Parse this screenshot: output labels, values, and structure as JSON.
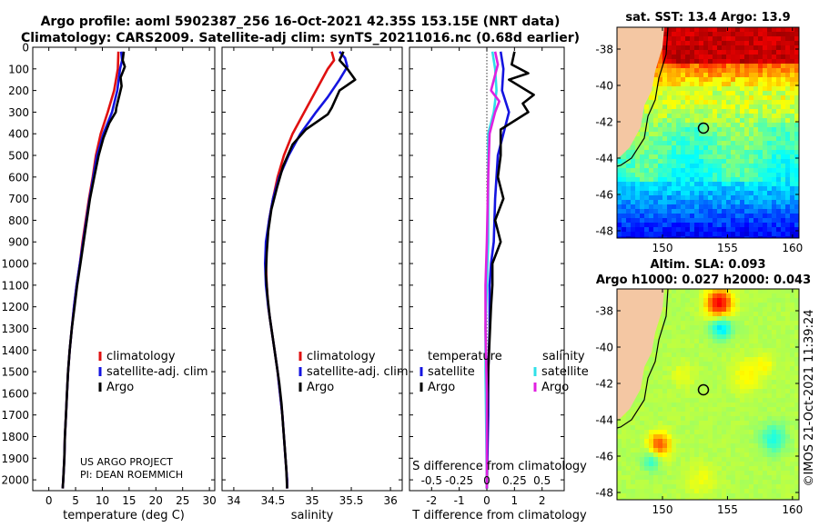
{
  "header": {
    "title_line1": "Argo profile: aoml 5902387_256 16-Oct-2021 42.35S 153.15E (NRT data)",
    "title_line2": "Climatology: CARS2009. Satellite-adj clim: synTS_20211016.nc (0.68d earlier)"
  },
  "credit": {
    "project": "US ARGO PROJECT",
    "pi": "PI: DEAN ROEMMICH",
    "stamp": "©IMOS 21-Oct-2021 11:39:24"
  },
  "colors": {
    "climatology": "#e01010",
    "satellite_adj": "#1414e0",
    "argo": "#000000",
    "sat_temperature": "#1414e0",
    "sat_salinity": "#30e0e8",
    "argo_salinity": "#e020e0"
  },
  "chart_data": [
    {
      "id": "temperature",
      "type": "line",
      "xlabel": "temperature (deg C)",
      "ylabel": "",
      "xlim": [
        -3,
        31
      ],
      "ylim": [
        2050,
        0
      ],
      "xticks": [
        0,
        5,
        10,
        15,
        20,
        25,
        30
      ],
      "yticks": [
        0,
        100,
        200,
        300,
        400,
        500,
        600,
        700,
        800,
        900,
        1000,
        1100,
        1200,
        1300,
        1400,
        1500,
        1600,
        1700,
        1800,
        1900,
        2000
      ],
      "legend": [
        "climatology",
        "satellite-adj. clim",
        "Argo"
      ],
      "series": [
        {
          "name": "climatology",
          "color": "#e01010",
          "points": [
            [
              13.0,
              20
            ],
            [
              12.9,
              100
            ],
            [
              12.2,
              200
            ],
            [
              11.0,
              300
            ],
            [
              9.7,
              400
            ],
            [
              8.8,
              500
            ],
            [
              8.2,
              600
            ],
            [
              7.5,
              700
            ],
            [
              6.9,
              800
            ],
            [
              6.3,
              900
            ],
            [
              5.8,
              1000
            ],
            [
              5.2,
              1100
            ],
            [
              4.7,
              1200
            ],
            [
              4.3,
              1300
            ],
            [
              3.9,
              1400
            ],
            [
              3.6,
              1500
            ],
            [
              3.4,
              1600
            ],
            [
              3.2,
              1700
            ],
            [
              3.0,
              1800
            ],
            [
              2.9,
              1900
            ],
            [
              2.7,
              2000
            ],
            [
              2.6,
              2040
            ]
          ]
        },
        {
          "name": "satellite-adj. clim",
          "color": "#1414e0",
          "points": [
            [
              13.5,
              20
            ],
            [
              13.7,
              60
            ],
            [
              13.3,
              100
            ],
            [
              12.8,
              200
            ],
            [
              11.8,
              300
            ],
            [
              10.2,
              400
            ],
            [
              9.0,
              500
            ],
            [
              8.3,
              600
            ],
            [
              7.6,
              700
            ],
            [
              7.0,
              800
            ],
            [
              6.4,
              900
            ],
            [
              5.8,
              1000
            ],
            [
              5.2,
              1100
            ],
            [
              4.7,
              1200
            ],
            [
              4.3,
              1300
            ],
            [
              3.9,
              1400
            ],
            [
              3.6,
              1500
            ],
            [
              3.4,
              1600
            ],
            [
              3.2,
              1700
            ],
            [
              3.0,
              1800
            ],
            [
              2.9,
              1900
            ],
            [
              2.7,
              2000
            ],
            [
              2.6,
              2040
            ]
          ]
        },
        {
          "name": "Argo",
          "color": "#000000",
          "points": [
            [
              14.0,
              20
            ],
            [
              13.8,
              60
            ],
            [
              14.2,
              90
            ],
            [
              13.4,
              140
            ],
            [
              13.6,
              180
            ],
            [
              13.2,
              220
            ],
            [
              12.6,
              280
            ],
            [
              12.5,
              300
            ],
            [
              11.3,
              350
            ],
            [
              10.2,
              420
            ],
            [
              9.3,
              500
            ],
            [
              8.5,
              600
            ],
            [
              7.7,
              700
            ],
            [
              7.1,
              800
            ],
            [
              6.5,
              900
            ],
            [
              5.9,
              1000
            ],
            [
              5.3,
              1100
            ],
            [
              4.8,
              1200
            ],
            [
              4.3,
              1300
            ],
            [
              3.9,
              1400
            ],
            [
              3.6,
              1500
            ],
            [
              3.4,
              1600
            ],
            [
              3.2,
              1700
            ],
            [
              3.0,
              1800
            ],
            [
              2.9,
              1900
            ],
            [
              2.7,
              2000
            ],
            [
              2.6,
              2040
            ]
          ]
        }
      ]
    },
    {
      "id": "salinity",
      "type": "line",
      "xlabel": "salinity",
      "ylabel": "",
      "xlim": [
        33.85,
        36.15
      ],
      "ylim": [
        2050,
        0
      ],
      "xticks": [
        34,
        34.5,
        35,
        35.5,
        36
      ],
      "xticklabels": [
        "34",
        "34.5",
        "35",
        "35.5",
        "36"
      ],
      "legend": [
        "climatology",
        "satellite-adj. clim",
        "Argo"
      ],
      "series": [
        {
          "name": "climatology",
          "color": "#e01010",
          "points": [
            [
              35.25,
              20
            ],
            [
              35.28,
              60
            ],
            [
              35.2,
              100
            ],
            [
              35.05,
              200
            ],
            [
              34.9,
              300
            ],
            [
              34.75,
              400
            ],
            [
              34.64,
              500
            ],
            [
              34.56,
              600
            ],
            [
              34.5,
              700
            ],
            [
              34.45,
              800
            ],
            [
              34.42,
              900
            ],
            [
              34.41,
              1000
            ],
            [
              34.42,
              1100
            ],
            [
              34.44,
              1200
            ],
            [
              34.48,
              1300
            ],
            [
              34.52,
              1400
            ],
            [
              34.56,
              1500
            ],
            [
              34.59,
              1600
            ],
            [
              34.62,
              1700
            ],
            [
              34.64,
              1800
            ],
            [
              34.66,
              1900
            ],
            [
              34.68,
              2000
            ],
            [
              34.68,
              2040
            ]
          ]
        },
        {
          "name": "satellite-adj. clim",
          "color": "#1414e0",
          "points": [
            [
              35.35,
              20
            ],
            [
              35.42,
              50
            ],
            [
              35.45,
              90
            ],
            [
              35.35,
              150
            ],
            [
              35.2,
              230
            ],
            [
              35.05,
              300
            ],
            [
              34.85,
              400
            ],
            [
              34.7,
              500
            ],
            [
              34.58,
              600
            ],
            [
              34.5,
              700
            ],
            [
              34.45,
              800
            ],
            [
              34.41,
              900
            ],
            [
              34.4,
              1000
            ],
            [
              34.41,
              1100
            ],
            [
              34.44,
              1200
            ],
            [
              34.48,
              1300
            ],
            [
              34.52,
              1400
            ],
            [
              34.56,
              1500
            ],
            [
              34.59,
              1600
            ],
            [
              34.62,
              1700
            ],
            [
              34.64,
              1800
            ],
            [
              34.66,
              1900
            ],
            [
              34.68,
              2000
            ],
            [
              34.68,
              2040
            ]
          ]
        },
        {
          "name": "Argo",
          "color": "#000000",
          "points": [
            [
              35.4,
              20
            ],
            [
              35.35,
              60
            ],
            [
              35.45,
              100
            ],
            [
              35.55,
              150
            ],
            [
              35.35,
              200
            ],
            [
              35.25,
              280
            ],
            [
              35.2,
              310
            ],
            [
              34.92,
              380
            ],
            [
              34.75,
              450
            ],
            [
              34.63,
              550
            ],
            [
              34.55,
              650
            ],
            [
              34.48,
              750
            ],
            [
              34.44,
              850
            ],
            [
              34.42,
              950
            ],
            [
              34.41,
              1050
            ],
            [
              34.43,
              1150
            ],
            [
              34.46,
              1250
            ],
            [
              34.5,
              1350
            ],
            [
              34.54,
              1450
            ],
            [
              34.58,
              1550
            ],
            [
              34.61,
              1650
            ],
            [
              34.63,
              1750
            ],
            [
              34.65,
              1850
            ],
            [
              34.67,
              1950
            ],
            [
              34.68,
              2040
            ]
          ]
        }
      ]
    },
    {
      "id": "difference",
      "type": "line",
      "xlabel": "T difference from climatology",
      "xlabel_top": "S difference from climatology",
      "ylabel": "",
      "xlim": [
        -2.8,
        2.8
      ],
      "ylim": [
        2050,
        0
      ],
      "xticks": [
        -2,
        -1,
        0,
        1,
        2
      ],
      "sticks": [
        -0.5,
        -0.25,
        0,
        0.25,
        0.5
      ],
      "sticklabels": [
        "-0.5",
        "-0.25",
        "0",
        "0.25",
        "0.5"
      ],
      "legend_headers": [
        "temperature",
        "salinity"
      ],
      "legend_temperature": [
        "satellite",
        "Argo"
      ],
      "legend_salinity": [
        "satellite",
        "Argo"
      ],
      "series": [
        {
          "name": "temperature satellite",
          "color": "#1414e0",
          "points": [
            [
              0.5,
              20
            ],
            [
              0.6,
              100
            ],
            [
              0.55,
              200
            ],
            [
              0.8,
              300
            ],
            [
              0.6,
              400
            ],
            [
              0.4,
              500
            ],
            [
              0.3,
              700
            ],
            [
              0.25,
              900
            ],
            [
              0.15,
              1000
            ],
            [
              0.1,
              1100
            ],
            [
              0.1,
              1300
            ],
            [
              0.05,
              1500
            ],
            [
              0.05,
              1700
            ],
            [
              0.02,
              1900
            ],
            [
              0.0,
              2040
            ]
          ]
        },
        {
          "name": "temperature Argo",
          "color": "#000000",
          "points": [
            [
              1.0,
              20
            ],
            [
              0.9,
              80
            ],
            [
              1.5,
              120
            ],
            [
              0.8,
              150
            ],
            [
              1.7,
              220
            ],
            [
              1.3,
              260
            ],
            [
              1.5,
              300
            ],
            [
              0.5,
              380
            ],
            [
              0.5,
              500
            ],
            [
              0.4,
              600
            ],
            [
              0.6,
              700
            ],
            [
              0.3,
              800
            ],
            [
              0.5,
              900
            ],
            [
              0.2,
              1000
            ],
            [
              0.2,
              1100
            ],
            [
              0.15,
              1200
            ],
            [
              0.1,
              1350
            ],
            [
              0.05,
              1500
            ],
            [
              0.02,
              1700
            ],
            [
              0.0,
              1900
            ],
            [
              0.0,
              2040
            ]
          ]
        },
        {
          "name": "salinity satellite",
          "color": "#30e0e8",
          "points": [
            [
              0.2,
              20
            ],
            [
              0.3,
              100
            ],
            [
              0.35,
              200
            ],
            [
              0.25,
              300
            ],
            [
              0.05,
              400
            ],
            [
              0.05,
              600
            ],
            [
              0.05,
              900
            ],
            [
              0.0,
              1100
            ],
            [
              -0.05,
              1300
            ],
            [
              -0.05,
              1500
            ],
            [
              -0.02,
              1800
            ],
            [
              0.0,
              2040
            ]
          ]
        },
        {
          "name": "salinity Argo",
          "color": "#e020e0",
          "points": [
            [
              0.3,
              20
            ],
            [
              0.4,
              80
            ],
            [
              0.15,
              200
            ],
            [
              0.45,
              250
            ],
            [
              0.3,
              300
            ],
            [
              0.1,
              400
            ],
            [
              0.05,
              600
            ],
            [
              0.0,
              900
            ],
            [
              -0.05,
              1100
            ],
            [
              -0.05,
              1300
            ],
            [
              0.0,
              1600
            ],
            [
              0.0,
              2040
            ]
          ]
        }
      ]
    },
    {
      "id": "sst_map",
      "type": "heatmap",
      "title": "sat. SST: 13.4  Argo: 13.9",
      "xlim": [
        146.5,
        160.5
      ],
      "ylim": [
        -48.4,
        -36.8
      ],
      "xticks": [
        150,
        155,
        160
      ],
      "yticks": [
        -38,
        -40,
        -42,
        -44,
        -46,
        -48
      ],
      "float_position": [
        153.15,
        -42.35
      ]
    },
    {
      "id": "sla_map",
      "type": "heatmap",
      "title_line1": "Altim. SLA: 0.093",
      "title_line2": "Argo h1000: 0.027 h2000: 0.043",
      "xlim": [
        146.5,
        160.5
      ],
      "ylim": [
        -48.4,
        -36.8
      ],
      "xticks": [
        150,
        155,
        160
      ],
      "yticks": [
        -38,
        -40,
        -42,
        -44,
        -46,
        -48
      ],
      "float_position": [
        153.15,
        -42.35
      ]
    }
  ]
}
